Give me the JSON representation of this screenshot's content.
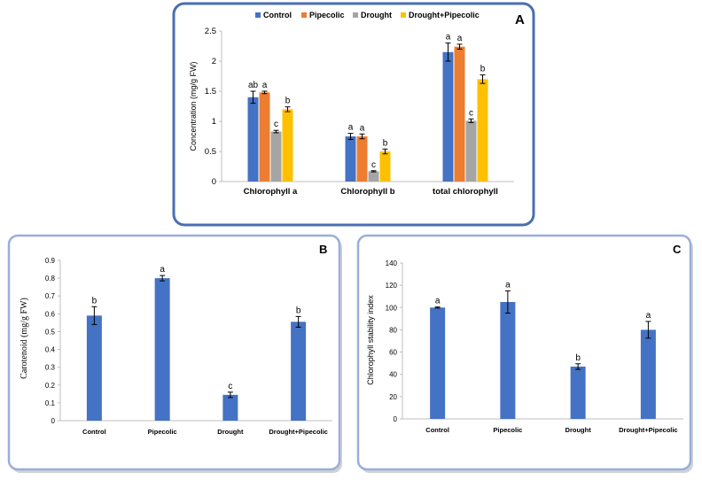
{
  "chart_data": [
    {
      "panel": "A",
      "type": "bar",
      "categories": [
        "Chlorophyll a",
        "Chlorophyll b",
        "total chlorophyll"
      ],
      "series": [
        {
          "name": "Control",
          "color": "#4472C4",
          "values": [
            1.4,
            0.75,
            2.15
          ],
          "errors": [
            0.1,
            0.05,
            0.15
          ],
          "letters": [
            "ab",
            "a",
            "a"
          ]
        },
        {
          "name": "Pipecolic",
          "color": "#ED7D31",
          "values": [
            1.48,
            0.75,
            2.24
          ],
          "errors": [
            0.02,
            0.04,
            0.04
          ],
          "letters": [
            "a",
            "a",
            "a"
          ]
        },
        {
          "name": "Drought",
          "color": "#A5A5A5",
          "values": [
            0.83,
            0.17,
            1.01
          ],
          "errors": [
            0.02,
            0.01,
            0.03
          ],
          "letters": [
            "c",
            "c",
            "c"
          ]
        },
        {
          "name": "Drought+Pipecolic",
          "color": "#FFC000",
          "values": [
            1.2,
            0.5,
            1.7
          ],
          "errors": [
            0.04,
            0.04,
            0.07
          ],
          "letters": [
            "b",
            "b",
            "b"
          ]
        }
      ],
      "ylabel": "Concentration (mg/g FW)",
      "ylim": [
        0,
        2.5
      ],
      "yticks": [
        "0",
        "0.5",
        "1",
        "1.5",
        "2",
        "2.5"
      ],
      "legend": "top"
    },
    {
      "panel": "B",
      "type": "bar",
      "categories": [
        "Control",
        "Pipecolic",
        "Drought",
        "Drought+Pipecolic"
      ],
      "series": [
        {
          "name": "Carotenoid",
          "color": "#4472C4",
          "values": [
            0.59,
            0.8,
            0.145,
            0.555
          ],
          "errors": [
            0.05,
            0.015,
            0.015,
            0.03
          ],
          "letters": [
            "b",
            "a",
            "c",
            "b"
          ]
        }
      ],
      "ylabel": "Carotenoid (mg/g FW)",
      "ylim": [
        0,
        0.9
      ],
      "yticks": [
        "0",
        "0.1",
        "0.2",
        "0.3",
        "0.4",
        "0.5",
        "0.6",
        "0.7",
        "0.8",
        "0.9"
      ]
    },
    {
      "panel": "C",
      "type": "bar",
      "categories": [
        "Control",
        "Pipecolic",
        "Drought",
        "Drought+Pipecolic"
      ],
      "series": [
        {
          "name": "Chlorophyll stability index",
          "color": "#4472C4",
          "values": [
            100,
            105,
            47,
            80
          ],
          "errors": [
            0.5,
            10,
            2.5,
            7.5
          ],
          "letters": [
            "a",
            "a",
            "b",
            "a"
          ]
        }
      ],
      "ylabel": "Chlorophyll stability index",
      "ylim": [
        0,
        140
      ],
      "yticks": [
        "0",
        "20",
        "40",
        "60",
        "80",
        "100",
        "120",
        "140"
      ]
    }
  ],
  "colors": {
    "panel_a_border": "#4A6FB0",
    "panel_bc_border": "#9AAEDC",
    "axis": "#BFBFBF",
    "text": "#000000"
  }
}
